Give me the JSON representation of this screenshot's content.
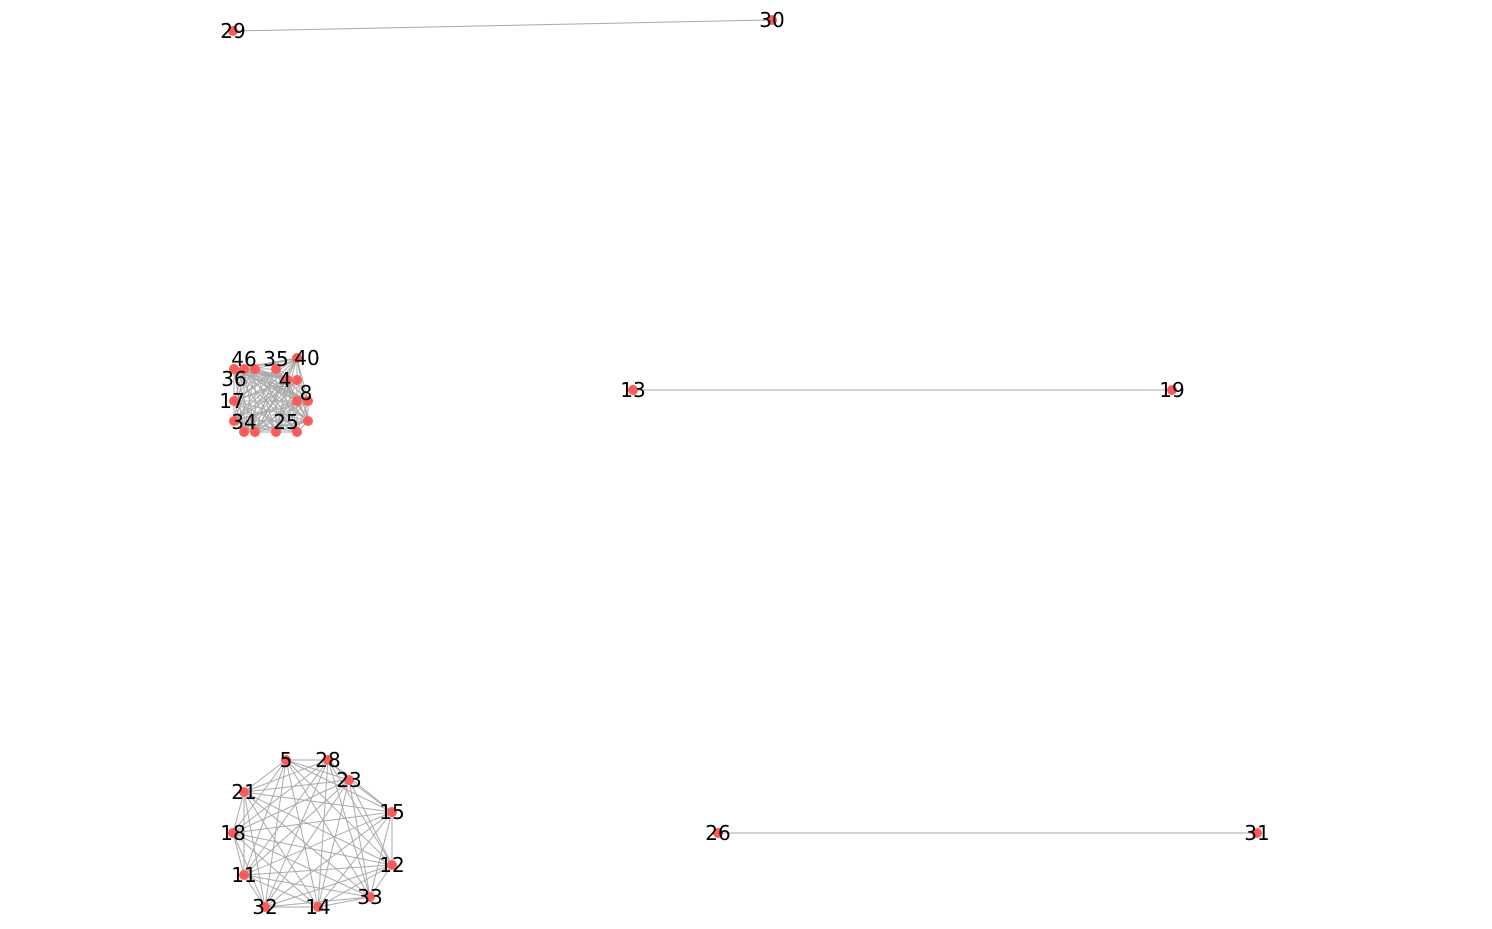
{
  "colors": {
    "background": "#ffffff",
    "node": "#ff5a5a",
    "edge": "#aaaaaa",
    "label": "#000000"
  },
  "graph": {
    "nodes": [
      {
        "id": "29",
        "label": "29"
      },
      {
        "id": "30",
        "label": "30"
      },
      {
        "id": "13",
        "label": "13"
      },
      {
        "id": "19",
        "label": "19"
      },
      {
        "id": "26",
        "label": "26"
      },
      {
        "id": "31",
        "label": "31"
      },
      {
        "id": "46",
        "label": "46"
      },
      {
        "id": "35",
        "label": "35"
      },
      {
        "id": "40",
        "label": "40"
      },
      {
        "id": "36",
        "label": "36"
      },
      {
        "id": "4",
        "label": "4"
      },
      {
        "id": "8",
        "label": "8"
      },
      {
        "id": "17",
        "label": "17"
      },
      {
        "id": "34",
        "label": "34"
      },
      {
        "id": "25",
        "label": "25"
      },
      {
        "id": "u1",
        "label": ""
      },
      {
        "id": "u2",
        "label": ""
      },
      {
        "id": "u3",
        "label": ""
      },
      {
        "id": "u4",
        "label": ""
      },
      {
        "id": "u5",
        "label": ""
      },
      {
        "id": "u6",
        "label": ""
      },
      {
        "id": "u7",
        "label": ""
      },
      {
        "id": "5",
        "label": "5"
      },
      {
        "id": "28",
        "label": "28"
      },
      {
        "id": "23",
        "label": "23"
      },
      {
        "id": "21",
        "label": "21"
      },
      {
        "id": "15",
        "label": "15"
      },
      {
        "id": "18",
        "label": "18"
      },
      {
        "id": "12",
        "label": "12"
      },
      {
        "id": "11",
        "label": "11"
      },
      {
        "id": "33",
        "label": "33"
      },
      {
        "id": "32",
        "label": "32"
      },
      {
        "id": "14",
        "label": "14"
      }
    ],
    "edges": [
      [
        "29",
        "30"
      ],
      [
        "13",
        "19"
      ],
      [
        "26",
        "31"
      ]
    ],
    "cliques": [
      [
        "46",
        "35",
        "40",
        "36",
        "4",
        "8",
        "17",
        "34",
        "25",
        "u1",
        "u2",
        "u3",
        "u4",
        "u5",
        "u6",
        "u7"
      ],
      [
        "5",
        "28",
        "23",
        "21",
        "15",
        "18",
        "12",
        "11",
        "33",
        "32",
        "14"
      ]
    ]
  }
}
